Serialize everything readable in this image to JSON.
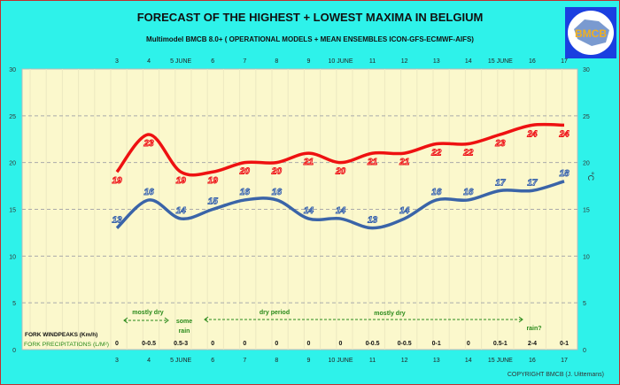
{
  "title": "FORECAST OF THE HIGHEST + LOWEST MAXIMA IN BELGIUM",
  "subtitle": "Multimodel BMCB 8.0+ ( OPERATIONAL MODELS + MEAN ENSEMBLES  ICON-GFS-ECMWF-AIFS)",
  "logo_text": "BMCB",
  "copyright": "COPYRIGHT BMCB (J. Uittemans)",
  "colors": {
    "background": "#2ef2ea",
    "plot": "#fbf8cc",
    "highest": "#ee1111",
    "lowest": "#3a64a8",
    "annotation": "#2a8a1a"
  },
  "chart_data": {
    "type": "line",
    "categories": [
      "3",
      "4",
      "5 JUNE",
      "6",
      "7",
      "8",
      "9",
      "10 JUNE",
      "11",
      "12",
      "13",
      "14",
      "15 JUNE",
      "16",
      "17"
    ],
    "ylim": [
      0,
      30
    ],
    "yticks": [
      0,
      5,
      10,
      15,
      20,
      25,
      30
    ],
    "ylabel": "°C",
    "grid": true,
    "series": [
      {
        "values": [
          19,
          23,
          19,
          19,
          20,
          20,
          21,
          20,
          21,
          21,
          22,
          22,
          23,
          24,
          24
        ]
      },
      {
        "values": [
          13,
          16,
          14,
          15,
          16,
          16,
          14,
          14,
          13,
          14,
          16,
          16,
          17,
          17,
          18
        ]
      }
    ],
    "wind_label": "FORK WINDPEAKS (Km/h)",
    "precip_label": "FORK PRECIPITATIONS (L/M²)",
    "precipitation": [
      "0",
      "0-0.5",
      "0.5-3",
      "0",
      "0",
      "0",
      "0",
      "0",
      "0-0.5",
      "0-0.5",
      "0-1",
      "0",
      "0.5-1",
      "2-4",
      "0-1"
    ],
    "annotations": [
      {
        "text": "mostly dry",
        "from": "4",
        "to": "5 JUNE"
      },
      {
        "text": "some rain",
        "at": "5 JUNE"
      },
      {
        "text": "dry period",
        "from": "6",
        "to": "10 JUNE"
      },
      {
        "text": "mostly dry",
        "from": "10 JUNE",
        "to": "16"
      },
      {
        "text": "rain?",
        "at": "16"
      }
    ]
  }
}
